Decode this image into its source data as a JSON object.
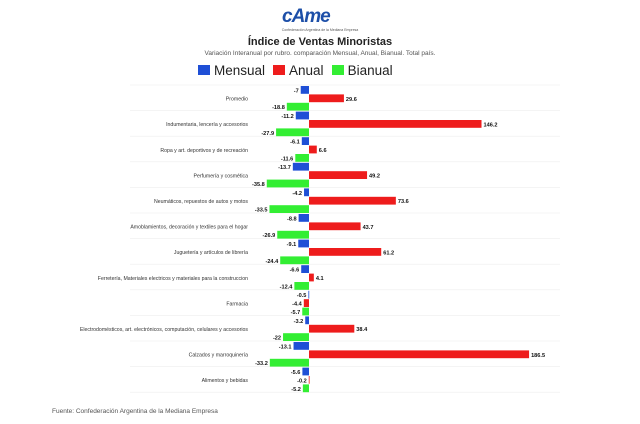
{
  "logo": {
    "text": "cAme",
    "subtitle": "Confederación Argentina de la Mediana Empresa"
  },
  "chart_data": {
    "type": "bar",
    "orientation": "horizontal",
    "title": "Índice de Ventas Minoristas",
    "subtitle": "Variación Interanual por rubro. comparación Mensual, Anual, Bianual. Total país.",
    "categories": [
      "Promedio",
      "Indumentaria, lencería y accesorios",
      "Ropa y art. deportivos y de recreación",
      "Perfumería y cosmética",
      "Neumáticos, repuestos de autos y motos",
      "Amoblamientos, decoración y textiles para el hogar",
      "Juguetería y artículos de librería",
      "Ferretería, Materiales electricos y materiales para la construccion",
      "Farmacia",
      "Electrodomésticos, art. electrónicos, computación, celulares y accesorios",
      "Calzados y marroquinería",
      "Alimentos y bebidas"
    ],
    "series": [
      {
        "name": "Mensual",
        "color": "#1f4fd6",
        "values": [
          -7,
          -11.2,
          -6.1,
          -13.7,
          -4.2,
          -8.8,
          -9.1,
          -6.6,
          -0.5,
          -3.2,
          -13.1,
          -5.6
        ]
      },
      {
        "name": "Anual",
        "color": "#ee1c1c",
        "values": [
          29.6,
          146.2,
          6.6,
          49.2,
          73.6,
          43.7,
          61.2,
          4.1,
          -4.4,
          38.4,
          186.5,
          -0.2
        ]
      },
      {
        "name": "Bianual",
        "color": "#33ee33",
        "values": [
          -18.8,
          -27.9,
          -11.6,
          -35.8,
          -33.5,
          -26.9,
          -24.4,
          -12.4,
          -5.7,
          -22,
          -33.2,
          -5.2
        ]
      }
    ],
    "legend_position": "top",
    "grid": true
  },
  "source": "Fuente: Confederación Argentina de la Mediana Empresa"
}
